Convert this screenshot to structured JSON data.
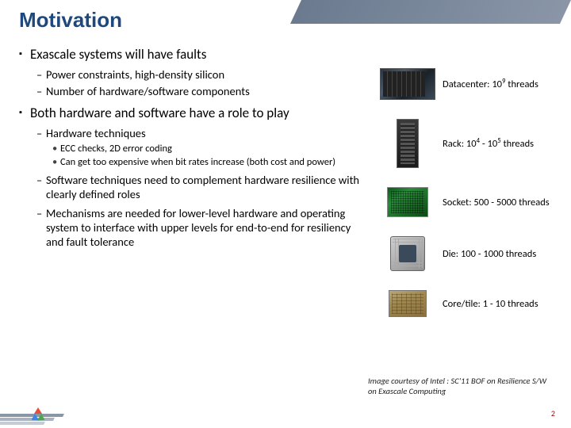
{
  "title": "Motivation",
  "bullets": {
    "b1": "Exascale systems will have faults",
    "b1_1": "Power constraints, high-density silicon",
    "b1_2": "Number of hardware/software components",
    "b2": "Both hardware and software have a role to play",
    "b2_1": "Hardware techniques",
    "b2_1_1": "ECC checks, 2D error coding",
    "b2_1_2": "Can get too expensive when bit rates increase (both cost and power)",
    "b2_2": "Software techniques need to complement hardware resilience with clearly defined roles",
    "b2_3": "Mechanisms are needed for lower-level hardware and operating system to interface with upper levels for end-to-end for resiliency and fault tolerance"
  },
  "scales": {
    "datacenter": {
      "label_html": "Datacenter: 10<sup>9</sup> threads"
    },
    "rack": {
      "label_html": "Rack: 10<sup>4</sup> - 10<sup>5</sup> threads"
    },
    "socket": {
      "label": "Socket: 500 - 5000 threads"
    },
    "die": {
      "label": "Die: 100 - 1000 threads"
    },
    "core": {
      "label": "Core/tile: 1 - 10 threads"
    }
  },
  "credit": "Image courtesy of Intel : SC'11 BOF on Resilience S/W on Exascale Computing",
  "page_number": "2"
}
